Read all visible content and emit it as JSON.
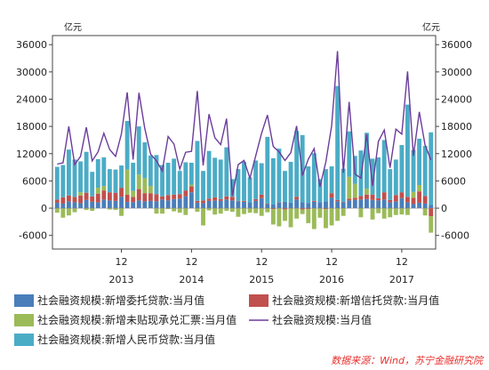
{
  "chart_data": {
    "type": "bar",
    "stacked": true,
    "title": "",
    "y_unit_left": "亿元",
    "y_unit_right": "亿元",
    "ylim": [
      -9000,
      38000
    ],
    "yticks": [
      -6000,
      0,
      6000,
      12000,
      18000,
      24000,
      30000,
      36000
    ],
    "grid": false,
    "legend_position": "bottom",
    "x_month_labels": [
      {
        "index": 11,
        "text": "12"
      },
      {
        "index": 23,
        "text": "12"
      },
      {
        "index": 35,
        "text": "12"
      },
      {
        "index": 47,
        "text": "12"
      },
      {
        "index": 59,
        "text": "12"
      }
    ],
    "x_year_labels": [
      {
        "index": 11,
        "text": "2013"
      },
      {
        "index": 23,
        "text": "2014"
      },
      {
        "index": 35,
        "text": "2015"
      },
      {
        "index": 47,
        "text": "2016"
      },
      {
        "index": 59,
        "text": "2017"
      }
    ],
    "categories": [
      "2012-01",
      "2012-02",
      "2012-03",
      "2012-04",
      "2012-05",
      "2012-06",
      "2012-07",
      "2012-08",
      "2012-09",
      "2012-10",
      "2012-11",
      "2012-12",
      "2013-01",
      "2013-02",
      "2013-03",
      "2013-04",
      "2013-05",
      "2013-06",
      "2013-07",
      "2013-08",
      "2013-09",
      "2013-10",
      "2013-11",
      "2013-12",
      "2014-01",
      "2014-02",
      "2014-03",
      "2014-04",
      "2014-05",
      "2014-06",
      "2014-07",
      "2014-08",
      "2014-09",
      "2014-10",
      "2014-11",
      "2014-12",
      "2015-01",
      "2015-02",
      "2015-03",
      "2015-04",
      "2015-05",
      "2015-06",
      "2015-07",
      "2015-08",
      "2015-09",
      "2015-10",
      "2015-11",
      "2015-12",
      "2016-01",
      "2016-02",
      "2016-03",
      "2016-04",
      "2016-05",
      "2016-06",
      "2016-07",
      "2016-08",
      "2016-09",
      "2016-10",
      "2016-11",
      "2016-12",
      "2017-01",
      "2017-02",
      "2017-03",
      "2017-04",
      "2017-05"
    ],
    "series": [
      {
        "name": "社会融资规模:新增委托贷款:当月值",
        "color": "#4a7ebb",
        "type": "bar",
        "values": [
          1200,
          1000,
          1500,
          1300,
          1100,
          1800,
          1400,
          1300,
          1900,
          1700,
          1600,
          2500,
          1400,
          1300,
          1700,
          1500,
          1600,
          1500,
          1900,
          1700,
          2000,
          2100,
          2600,
          3500,
          1200,
          1100,
          1600,
          1700,
          1600,
          1900,
          1700,
          1500,
          1400,
          1300,
          1600,
          2200,
          900,
          800,
          1200,
          1400,
          1200,
          1900,
          1300,
          1100,
          1400,
          1300,
          1500,
          2300,
          1500,
          1300,
          1700,
          1800,
          1900,
          2000,
          1800,
          1700,
          1900,
          1300,
          1500,
          2200,
          1300,
          900,
          1200,
          1000,
          700
        ]
      },
      {
        "name": "社会融资规模:新增信托贷款:当月值",
        "color": "#c0504d",
        "type": "bar",
        "values": [
          700,
          1400,
          1300,
          1200,
          1700,
          1600,
          1200,
          1900,
          2000,
          1800,
          1800,
          2000,
          1600,
          1200,
          2500,
          1800,
          1700,
          1600,
          700,
          1200,
          1000,
          1000,
          1300,
          1300,
          400,
          600,
          500,
          700,
          400,
          700,
          800,
          100,
          200,
          -100,
          400,
          800,
          100,
          -200,
          100,
          -300,
          -100,
          600,
          -300,
          -200,
          200,
          -100,
          -200,
          1000,
          300,
          100,
          400,
          500,
          800,
          1000,
          1200,
          500,
          1600,
          500,
          1400,
          1300,
          1200,
          1400,
          2500,
          1700,
          -1800
        ]
      },
      {
        "name": "社会融资规模:新增未贴现承兑汇票:当月值",
        "color": "#9bbb59",
        "type": "bar",
        "values": [
          -1000,
          -2100,
          -1600,
          -900,
          700,
          -400,
          -600,
          1300,
          1000,
          -300,
          -400,
          -1700,
          5500,
          1300,
          3200,
          3300,
          1600,
          -1200,
          -1200,
          -200,
          -700,
          -1000,
          -1500,
          400,
          -800,
          -3800,
          -500,
          -1400,
          -1200,
          -600,
          -800,
          -1900,
          -1300,
          -900,
          -1100,
          -1700,
          -900,
          -3400,
          -4000,
          -2500,
          -4100,
          -2300,
          -1000,
          -3100,
          -4600,
          -2000,
          -4200,
          -3800,
          -2800,
          -1700,
          4800,
          3100,
          -2000,
          1300,
          -2500,
          -1100,
          -2300,
          -2000,
          -1500,
          -1400,
          -1500,
          1300,
          1400,
          -1600,
          -3600
        ]
      },
      {
        "name": "社会融资规模:新增人民币贷款:当月值",
        "color": "#4bacc6",
        "type": "bar",
        "values": [
          7200,
          7100,
          10100,
          8200,
          6800,
          9000,
          5400,
          6300,
          6300,
          5100,
          5100,
          4900,
          10700,
          6200,
          10600,
          7900,
          6700,
          8600,
          6900,
          7100,
          7900,
          5100,
          6200,
          4800,
          13200,
          6500,
          10500,
          8700,
          8700,
          10800,
          3900,
          7000,
          8600,
          5500,
          8500,
          6900,
          14700,
          10200,
          11800,
          6800,
          9000,
          14500,
          14800,
          8100,
          10500,
          5100,
          7100,
          5900,
          25100,
          7300,
          10000,
          6100,
          10000,
          12300,
          7900,
          9000,
          11500,
          6800,
          7800,
          10400,
          20300,
          9200,
          10200,
          11000,
          16000
        ]
      },
      {
        "name": "社会融资规模:当月值",
        "color": "#6a3d9a",
        "type": "line",
        "values": [
          9700,
          10000,
          18000,
          9600,
          11400,
          17800,
          10400,
          12400,
          16500,
          12900,
          11400,
          16300,
          25500,
          10700,
          25400,
          17600,
          11900,
          10400,
          8200,
          15800,
          14100,
          8600,
          12300,
          12500,
          25800,
          9400,
          20700,
          15500,
          14000,
          19700,
          2700,
          9600,
          10500,
          6600,
          11500,
          16500,
          20500,
          13600,
          12400,
          10500,
          12200,
          18100,
          7200,
          10800,
          13100,
          4700,
          10200,
          18100,
          34600,
          7800,
          23400,
          7500,
          6600,
          16300,
          4900,
          14700,
          17200,
          8900,
          17400,
          16300,
          30100,
          11500,
          21200,
          13900,
          10600
        ]
      }
    ],
    "source": "数据来源：Wind，苏宁金融研究院"
  }
}
